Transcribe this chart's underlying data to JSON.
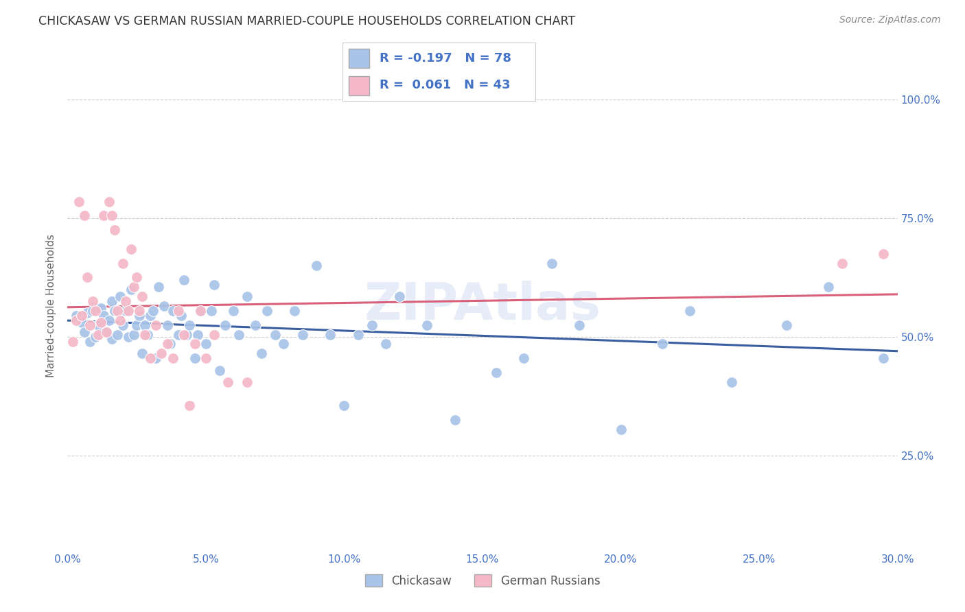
{
  "title": "CHICKASAW VS GERMAN RUSSIAN MARRIED-COUPLE HOUSEHOLDS CORRELATION CHART",
  "source": "Source: ZipAtlas.com",
  "ylabel": "Married-couple Households",
  "ytick_labels": [
    "100.0%",
    "75.0%",
    "50.0%",
    "25.0%"
  ],
  "ytick_values": [
    1.0,
    0.75,
    0.5,
    0.25
  ],
  "xlim": [
    0.0,
    0.3
  ],
  "ylim": [
    0.05,
    1.08
  ],
  "legend_blue_R": "-0.197",
  "legend_blue_N": "78",
  "legend_pink_R": "0.061",
  "legend_pink_N": "43",
  "blue_scatter_color": "#a8c4e8",
  "pink_scatter_color": "#f5b8c8",
  "blue_line_color": "#3a5fa0",
  "pink_line_color": "#d9607a",
  "legend_text_color": "#4472c4",
  "watermark": "ZIPAtlas",
  "chickasaw_x": [
    0.003,
    0.005,
    0.006,
    0.007,
    0.008,
    0.009,
    0.01,
    0.011,
    0.012,
    0.013,
    0.014,
    0.015,
    0.016,
    0.016,
    0.017,
    0.018,
    0.019,
    0.02,
    0.021,
    0.022,
    0.023,
    0.024,
    0.025,
    0.026,
    0.027,
    0.028,
    0.029,
    0.03,
    0.031,
    0.032,
    0.033,
    0.035,
    0.036,
    0.037,
    0.038,
    0.04,
    0.041,
    0.042,
    0.043,
    0.044,
    0.046,
    0.047,
    0.048,
    0.05,
    0.052,
    0.053,
    0.055,
    0.057,
    0.06,
    0.062,
    0.065,
    0.068,
    0.07,
    0.072,
    0.075,
    0.078,
    0.082,
    0.085,
    0.09,
    0.095,
    0.1,
    0.105,
    0.11,
    0.115,
    0.12,
    0.13,
    0.14,
    0.155,
    0.165,
    0.175,
    0.185,
    0.2,
    0.215,
    0.225,
    0.24,
    0.26,
    0.275,
    0.295
  ],
  "chickasaw_y": [
    0.545,
    0.53,
    0.51,
    0.55,
    0.49,
    0.555,
    0.5,
    0.525,
    0.56,
    0.545,
    0.51,
    0.535,
    0.495,
    0.575,
    0.555,
    0.505,
    0.585,
    0.525,
    0.555,
    0.5,
    0.6,
    0.505,
    0.525,
    0.545,
    0.465,
    0.525,
    0.505,
    0.545,
    0.555,
    0.455,
    0.605,
    0.565,
    0.525,
    0.485,
    0.555,
    0.505,
    0.545,
    0.62,
    0.505,
    0.525,
    0.455,
    0.505,
    0.555,
    0.485,
    0.555,
    0.61,
    0.43,
    0.525,
    0.555,
    0.505,
    0.585,
    0.525,
    0.465,
    0.555,
    0.505,
    0.485,
    0.555,
    0.505,
    0.65,
    0.505,
    0.355,
    0.505,
    0.525,
    0.485,
    0.585,
    0.525,
    0.325,
    0.425,
    0.455,
    0.655,
    0.525,
    0.305,
    0.485,
    0.555,
    0.405,
    0.525,
    0.605,
    0.455
  ],
  "german_russian_x": [
    0.002,
    0.003,
    0.004,
    0.005,
    0.006,
    0.007,
    0.008,
    0.009,
    0.01,
    0.011,
    0.012,
    0.013,
    0.014,
    0.015,
    0.016,
    0.017,
    0.018,
    0.019,
    0.02,
    0.021,
    0.022,
    0.023,
    0.024,
    0.025,
    0.026,
    0.027,
    0.028,
    0.03,
    0.032,
    0.034,
    0.036,
    0.038,
    0.04,
    0.042,
    0.044,
    0.046,
    0.048,
    0.05,
    0.053,
    0.058,
    0.065,
    0.28,
    0.295
  ],
  "german_russian_y": [
    0.49,
    0.535,
    0.785,
    0.545,
    0.755,
    0.625,
    0.525,
    0.575,
    0.555,
    0.505,
    0.53,
    0.755,
    0.51,
    0.785,
    0.755,
    0.725,
    0.555,
    0.535,
    0.655,
    0.575,
    0.555,
    0.685,
    0.605,
    0.625,
    0.555,
    0.585,
    0.505,
    0.455,
    0.525,
    0.465,
    0.485,
    0.455,
    0.555,
    0.505,
    0.355,
    0.485,
    0.555,
    0.455,
    0.505,
    0.405,
    0.405,
    0.655,
    0.675
  ],
  "background_color": "#ffffff",
  "grid_color": "#cccccc",
  "title_color": "#333333",
  "axis_tick_color": "#4472c4"
}
